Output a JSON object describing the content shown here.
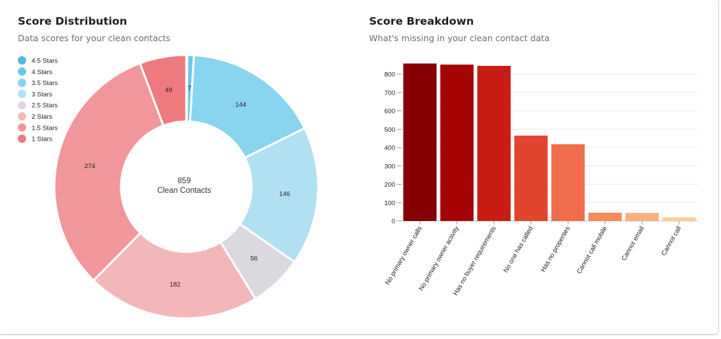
{
  "left_panel": {
    "title": "Score Distribution",
    "subtitle": "Data scores for your clean contacts"
  },
  "right_panel": {
    "title": "Score Breakdown",
    "subtitle": "What's missing in your clean contact data"
  },
  "chart_data": [
    {
      "type": "pie",
      "variant": "donut",
      "center_value": "859",
      "center_label": "Clean Contacts",
      "legend_placement": "top-left",
      "categories": [
        "4.5 Stars",
        "4 Stars",
        "3.5 Stars",
        "3 Stars",
        "2.5 Stars",
        "2 Stars",
        "1.5 Stars",
        "1 Stars"
      ],
      "values": [
        1,
        7,
        144,
        146,
        56,
        182,
        274,
        49
      ],
      "data_labels": [
        "",
        "7",
        "144",
        "146",
        "56",
        "182",
        "274",
        "49"
      ],
      "colors": [
        "#4fb9e3",
        "#6cc8ea",
        "#89d4ee",
        "#b1e0f3",
        "#dcd8e0",
        "#f3b7ba",
        "#f1979b",
        "#ee7a80"
      ]
    },
    {
      "type": "bar",
      "categories": [
        "No primary owner calls",
        "No primary owner activity",
        "Has no buyer requirements",
        "No one has called",
        "Has no properties",
        "Cannot call mobile",
        "Cannot email",
        "Cannot call"
      ],
      "values": [
        858,
        852,
        845,
        465,
        418,
        45,
        44,
        20
      ],
      "colors": [
        "#850000",
        "#a60505",
        "#c81c14",
        "#e2442e",
        "#f06c4a",
        "#f68a5e",
        "#f9b07d",
        "#fbcf96"
      ],
      "ylim": [
        0,
        860
      ],
      "yticks": [
        0,
        100,
        200,
        300,
        400,
        500,
        600,
        700,
        800
      ],
      "grid": true,
      "xlabel": "",
      "ylabel": ""
    }
  ]
}
